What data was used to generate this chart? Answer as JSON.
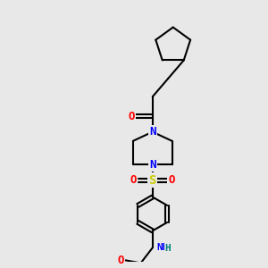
{
  "background_color": "#e8e8e8",
  "fig_width": 3.0,
  "fig_height": 3.0,
  "dpi": 100,
  "atom_colors": {
    "C": "#000000",
    "N": "#0000ff",
    "O": "#ff0000",
    "S": "#cccc00",
    "H": "#008080"
  },
  "bond_color": "#000000",
  "bond_width": 1.5,
  "font_size_atom": 9,
  "font_size_small": 7
}
